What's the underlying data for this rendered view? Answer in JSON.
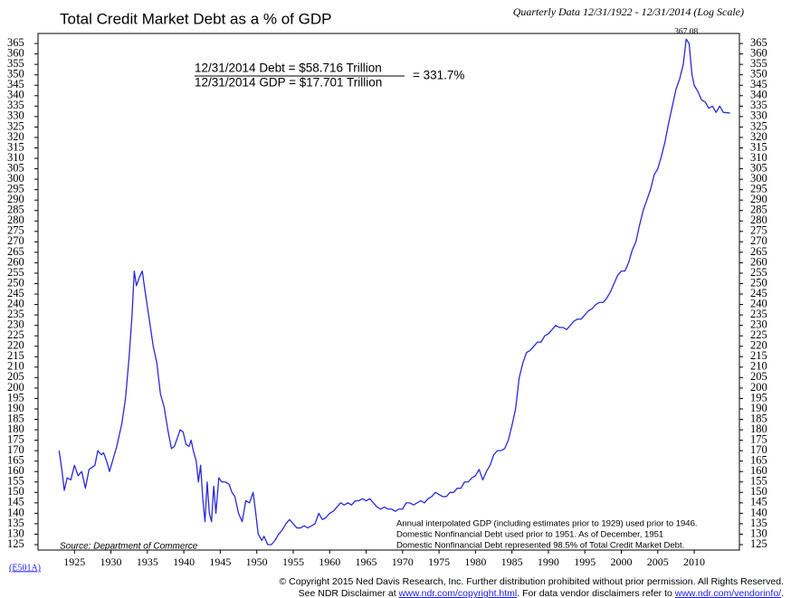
{
  "chart_data": {
    "type": "line",
    "title": "Total Credit Market Debt as a % of GDP",
    "subtitle": "Quarterly Data 12/31/1922 - 12/31/2014 (Log Scale)",
    "equation": {
      "debt": "12/31/2014  Debt  =  $58.716 Trillion",
      "gdp": "12/31/2014  GDP  =  $17.701 Trillion",
      "ratio": "=  331.7%"
    },
    "peak_label": "367.08",
    "source": "Source: Department of Commerce",
    "notes": [
      "Annual interpolated GDP (including estimates prior to 1929) used prior to 1946.",
      "Domestic Nonfinancial Debt used prior to 1951. As of December, 1951",
      "Domestic Nonfinancial Debt represented 98.5% of Total Credit Market Debt."
    ],
    "chart_code": "(E501A)",
    "footer": [
      [
        "© Copyright 2015 Ned Davis Research, Inc.  Further distribution prohibited without prior permission.  All Rights Reserved."
      ],
      [
        "See NDR Disclaimer at ",
        "www.ndr.com/copyright.html",
        ". For data vendor disclaimers refer to ",
        "www.ndr.com/vendorinfo/",
        "."
      ]
    ],
    "xlim": [
      1920,
      2016.2
    ],
    "xticks": [
      1925,
      1930,
      1935,
      1940,
      1945,
      1950,
      1955,
      1960,
      1965,
      1970,
      1975,
      1980,
      1985,
      1990,
      1995,
      2000,
      2005,
      2010
    ],
    "ylim": [
      122.4,
      369.8
    ],
    "yticks": [
      125,
      130,
      135,
      140,
      145,
      150,
      155,
      160,
      165,
      170,
      175,
      180,
      185,
      190,
      195,
      200,
      205,
      210,
      215,
      220,
      225,
      230,
      235,
      240,
      245,
      250,
      255,
      260,
      265,
      270,
      275,
      280,
      285,
      290,
      295,
      300,
      305,
      310,
      315,
      320,
      325,
      330,
      335,
      340,
      345,
      350,
      355,
      360,
      365
    ],
    "series": [
      {
        "color": "#2a2ad8",
        "x": [
          1922.9,
          1923.3,
          1923.6,
          1924,
          1924.5,
          1925,
          1925.5,
          1926,
          1926.5,
          1927,
          1927.8,
          1928.2,
          1928.7,
          1929,
          1929.5,
          1929.8,
          1930.3,
          1930.8,
          1931.5,
          1932,
          1932.5,
          1932.9,
          1933.2,
          1933.5,
          1933.9,
          1934.3,
          1934.7,
          1935.3,
          1935.8,
          1936.3,
          1936.8,
          1937.3,
          1937.8,
          1938.3,
          1938.7,
          1939.1,
          1939.5,
          1939.9,
          1940.3,
          1940.7,
          1941,
          1941.3,
          1941.7,
          1942,
          1942.3,
          1942.6,
          1942.9,
          1943.2,
          1943.5,
          1943.8,
          1944.1,
          1944.4,
          1944.8,
          1945.2,
          1945.7,
          1946.2,
          1946.6,
          1947,
          1947.5,
          1948,
          1948.5,
          1949,
          1949.5,
          1949.8,
          1950.2,
          1950.7,
          1951,
          1951.5,
          1952,
          1952.5,
          1953,
          1953.5,
          1954,
          1954.5,
          1955,
          1955.5,
          1956,
          1956.5,
          1957,
          1957.5,
          1958,
          1958.5,
          1959,
          1959.5,
          1960,
          1960.5,
          1961,
          1961.5,
          1962,
          1962.5,
          1963,
          1963.5,
          1964,
          1964.5,
          1965,
          1965.5,
          1966,
          1966.5,
          1967,
          1967.5,
          1968,
          1968.5,
          1969,
          1969.5,
          1970,
          1970.5,
          1971,
          1971.5,
          1972,
          1972.5,
          1973,
          1973.5,
          1974,
          1974.5,
          1975,
          1975.5,
          1976,
          1976.5,
          1977,
          1977.5,
          1978,
          1978.5,
          1979,
          1979.5,
          1980,
          1980.5,
          1981,
          1981.5,
          1982,
          1982.5,
          1983,
          1983.5,
          1984,
          1984.5,
          1985,
          1985.5,
          1986,
          1986.5,
          1987,
          1987.5,
          1988,
          1988.5,
          1989,
          1989.5,
          1990,
          1990.5,
          1991,
          1991.5,
          1992,
          1992.5,
          1993,
          1993.5,
          1994,
          1994.5,
          1995,
          1995.5,
          1996,
          1996.5,
          1997,
          1997.5,
          1998,
          1998.5,
          1999,
          1999.5,
          2000,
          2000.5,
          2001,
          2001.5,
          2002,
          2002.5,
          2003,
          2003.5,
          2004,
          2004.5,
          2005,
          2005.5,
          2006,
          2006.5,
          2007,
          2007.5,
          2008,
          2008.5,
          2008.9,
          2009.3,
          2009.7,
          2010,
          2010.5,
          2011,
          2011.5,
          2012,
          2012.5,
          2013,
          2013.5,
          2014,
          2014.9
        ],
        "values": [
          170,
          160,
          151,
          157,
          156,
          163,
          158,
          160,
          152,
          161,
          163,
          170,
          168,
          169,
          164,
          160,
          166,
          172,
          183,
          195,
          215,
          235,
          256,
          249,
          253,
          256,
          246,
          232,
          220,
          212,
          197,
          191,
          180,
          171,
          172,
          176,
          180,
          179,
          173,
          172,
          175,
          170,
          165,
          155,
          163,
          147,
          136,
          155,
          140,
          136,
          153,
          140,
          157,
          155,
          155,
          154,
          150,
          148,
          140,
          136,
          146,
          145,
          150,
          142,
          130,
          127,
          129,
          125,
          125,
          127,
          130,
          132,
          135,
          137,
          135,
          133,
          133,
          134,
          133,
          134,
          135,
          140,
          137,
          138,
          140,
          141,
          143,
          145,
          144,
          145,
          144,
          146,
          146,
          147,
          146,
          147,
          145,
          143,
          142,
          143,
          142,
          142,
          141,
          142,
          142,
          145,
          145,
          144,
          145,
          146,
          145,
          147,
          148,
          150,
          149,
          148,
          148,
          150,
          150,
          152,
          152,
          155,
          155,
          157,
          158,
          161,
          156,
          160,
          163,
          168,
          170,
          170,
          171,
          175,
          182,
          190,
          205,
          212,
          217,
          218,
          220,
          222,
          222,
          225,
          226,
          228,
          230,
          229,
          229,
          228,
          230,
          232,
          233,
          233,
          235,
          237,
          238,
          240,
          241,
          241,
          243,
          246,
          250,
          254,
          256,
          256,
          260,
          266,
          270,
          278,
          285,
          290,
          295,
          302,
          305,
          311,
          318,
          327,
          335,
          343,
          348,
          355,
          367.08,
          365,
          350,
          345,
          342,
          338,
          337,
          334,
          335,
          332,
          335,
          332,
          331.7
        ]
      }
    ]
  }
}
